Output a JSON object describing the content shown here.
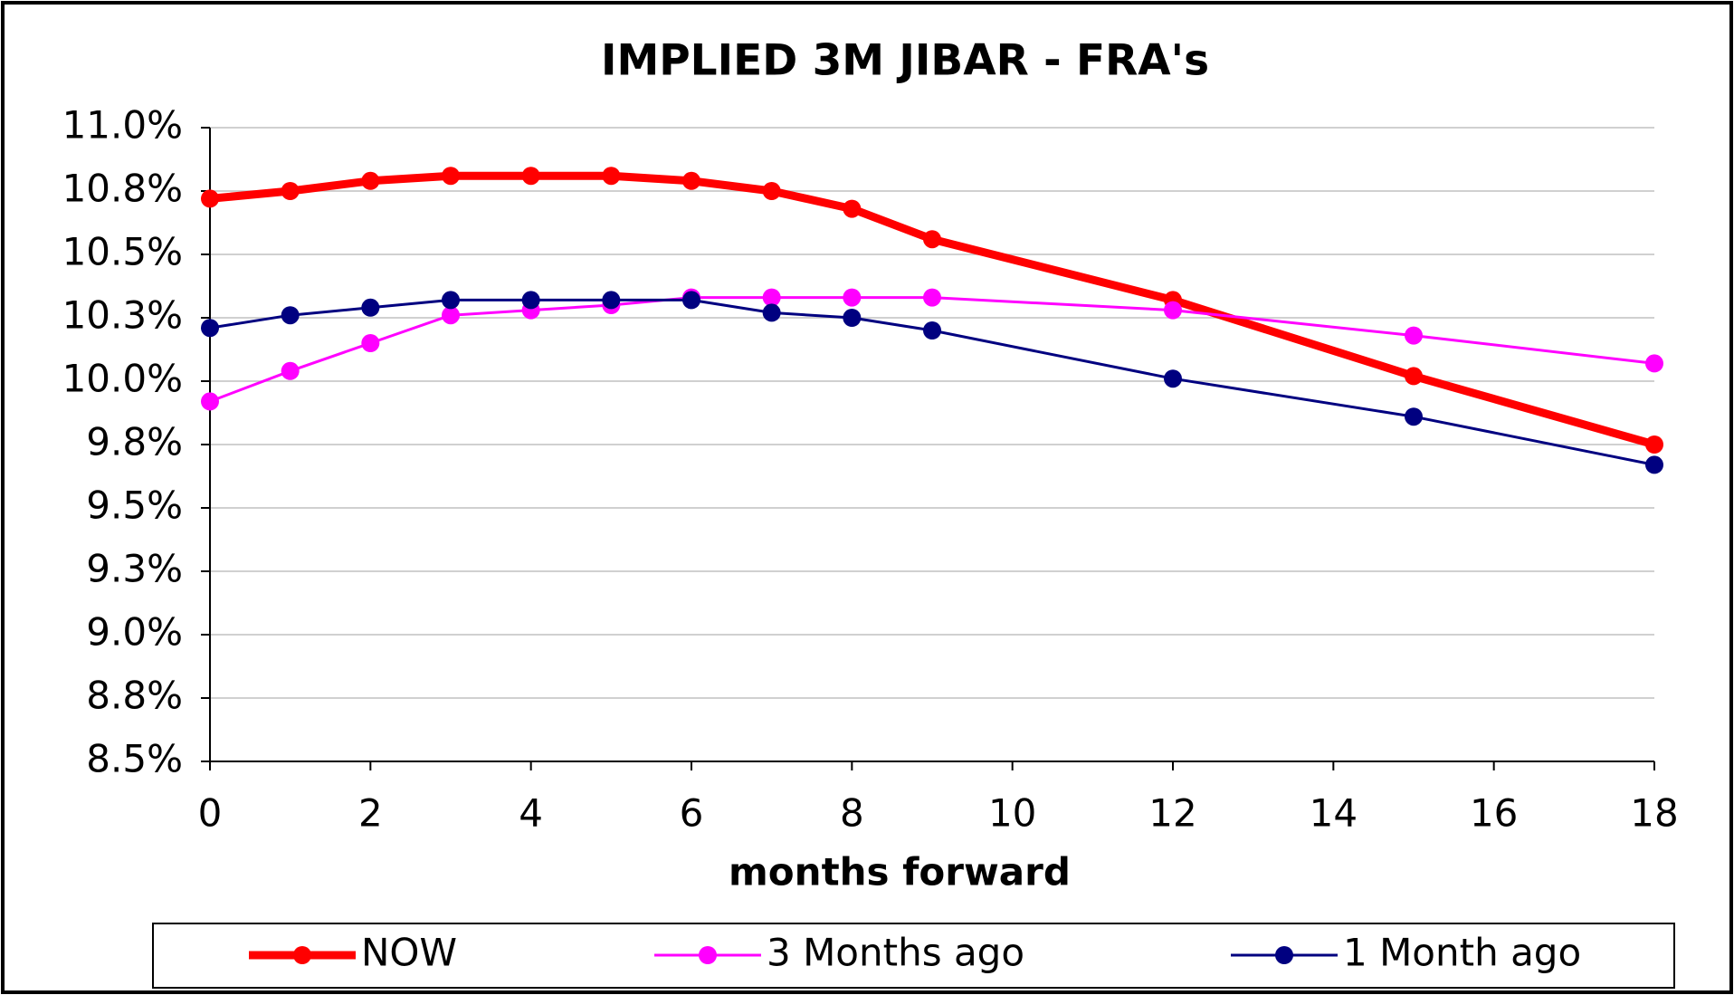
{
  "chart_data": {
    "type": "line",
    "title": "IMPLIED 3M JIBAR - FRA's",
    "x_label": "months forward",
    "x": [
      0,
      1,
      2,
      3,
      4,
      5,
      6,
      7,
      8,
      9,
      12,
      15,
      18
    ],
    "series": [
      {
        "name": "NOW",
        "color": "#ff0000",
        "linewidth": 9,
        "values": [
          10.72,
          10.75,
          10.79,
          10.81,
          10.81,
          10.81,
          10.79,
          10.75,
          10.68,
          10.56,
          10.32,
          10.02,
          9.75
        ]
      },
      {
        "name": "3 Months ago",
        "color": "#ff00ff",
        "linewidth": 3,
        "values": [
          9.92,
          10.04,
          10.15,
          10.26,
          10.28,
          10.3,
          10.33,
          10.33,
          10.33,
          10.33,
          10.28,
          10.18,
          10.07
        ]
      },
      {
        "name": "1 Month ago",
        "color": "#000080",
        "linewidth": 3,
        "values": [
          10.21,
          10.26,
          10.29,
          10.32,
          10.32,
          10.32,
          10.32,
          10.27,
          10.25,
          10.2,
          10.01,
          9.86,
          9.67
        ]
      }
    ],
    "xlim": [
      0,
      18
    ],
    "xticks": [
      0,
      2,
      4,
      6,
      8,
      10,
      12,
      14,
      16,
      18
    ],
    "ylim": [
      8.5,
      11
    ],
    "yticks": [
      {
        "value": 8.5,
        "label": "8.5%"
      },
      {
        "value": 8.75,
        "label": "8.8%"
      },
      {
        "value": 9,
        "label": "9.0%"
      },
      {
        "value": 9.25,
        "label": "9.3%"
      },
      {
        "value": 9.5,
        "label": "9.5%"
      },
      {
        "value": 9.75,
        "label": "9.8%"
      },
      {
        "value": 10,
        "label": "10.0%"
      },
      {
        "value": 10.25,
        "label": "10.3%"
      },
      {
        "value": 10.5,
        "label": "10.5%"
      },
      {
        "value": 10.75,
        "label": "10.8%"
      },
      {
        "value": 11,
        "label": "11.0%"
      }
    ],
    "grid": true,
    "legend": "bottom"
  }
}
